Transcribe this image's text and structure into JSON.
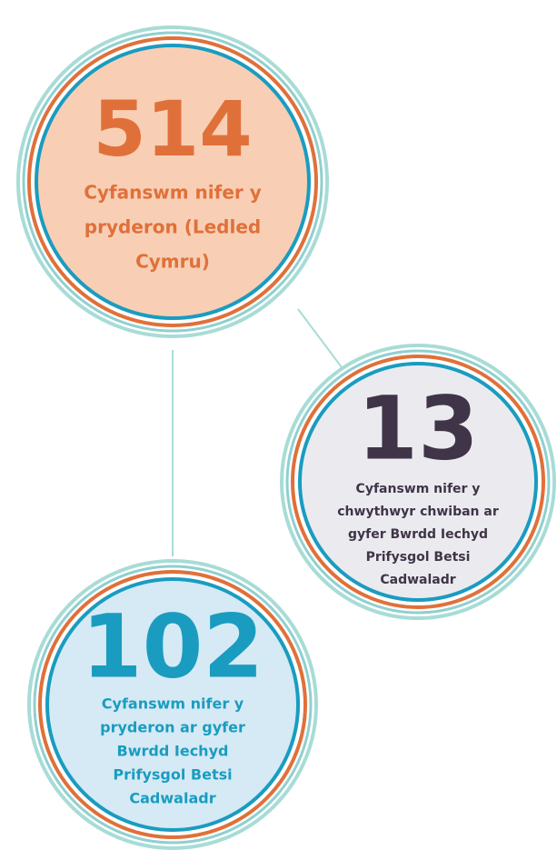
{
  "nodes": [
    {
      "value": 514,
      "label_lines": [
        "Cyfanswm nifer y",
        "pryderon (Ledled",
        "Cymru)"
      ]
    },
    {
      "value": 13,
      "label_lines": [
        "Cyfanswm nifer y",
        "chwythwyr chwiban ar",
        "gyfer Bwrdd Iechyd",
        "Prifysgol Betsi",
        "Cadwaladr"
      ]
    },
    {
      "value": 102,
      "label_lines": [
        "Cyfanswm nifer y",
        "pryderon ar gyfer",
        "Bwrdd Iechyd",
        "Prifysgol Betsi",
        "Cadwaladr"
      ]
    }
  ]
}
